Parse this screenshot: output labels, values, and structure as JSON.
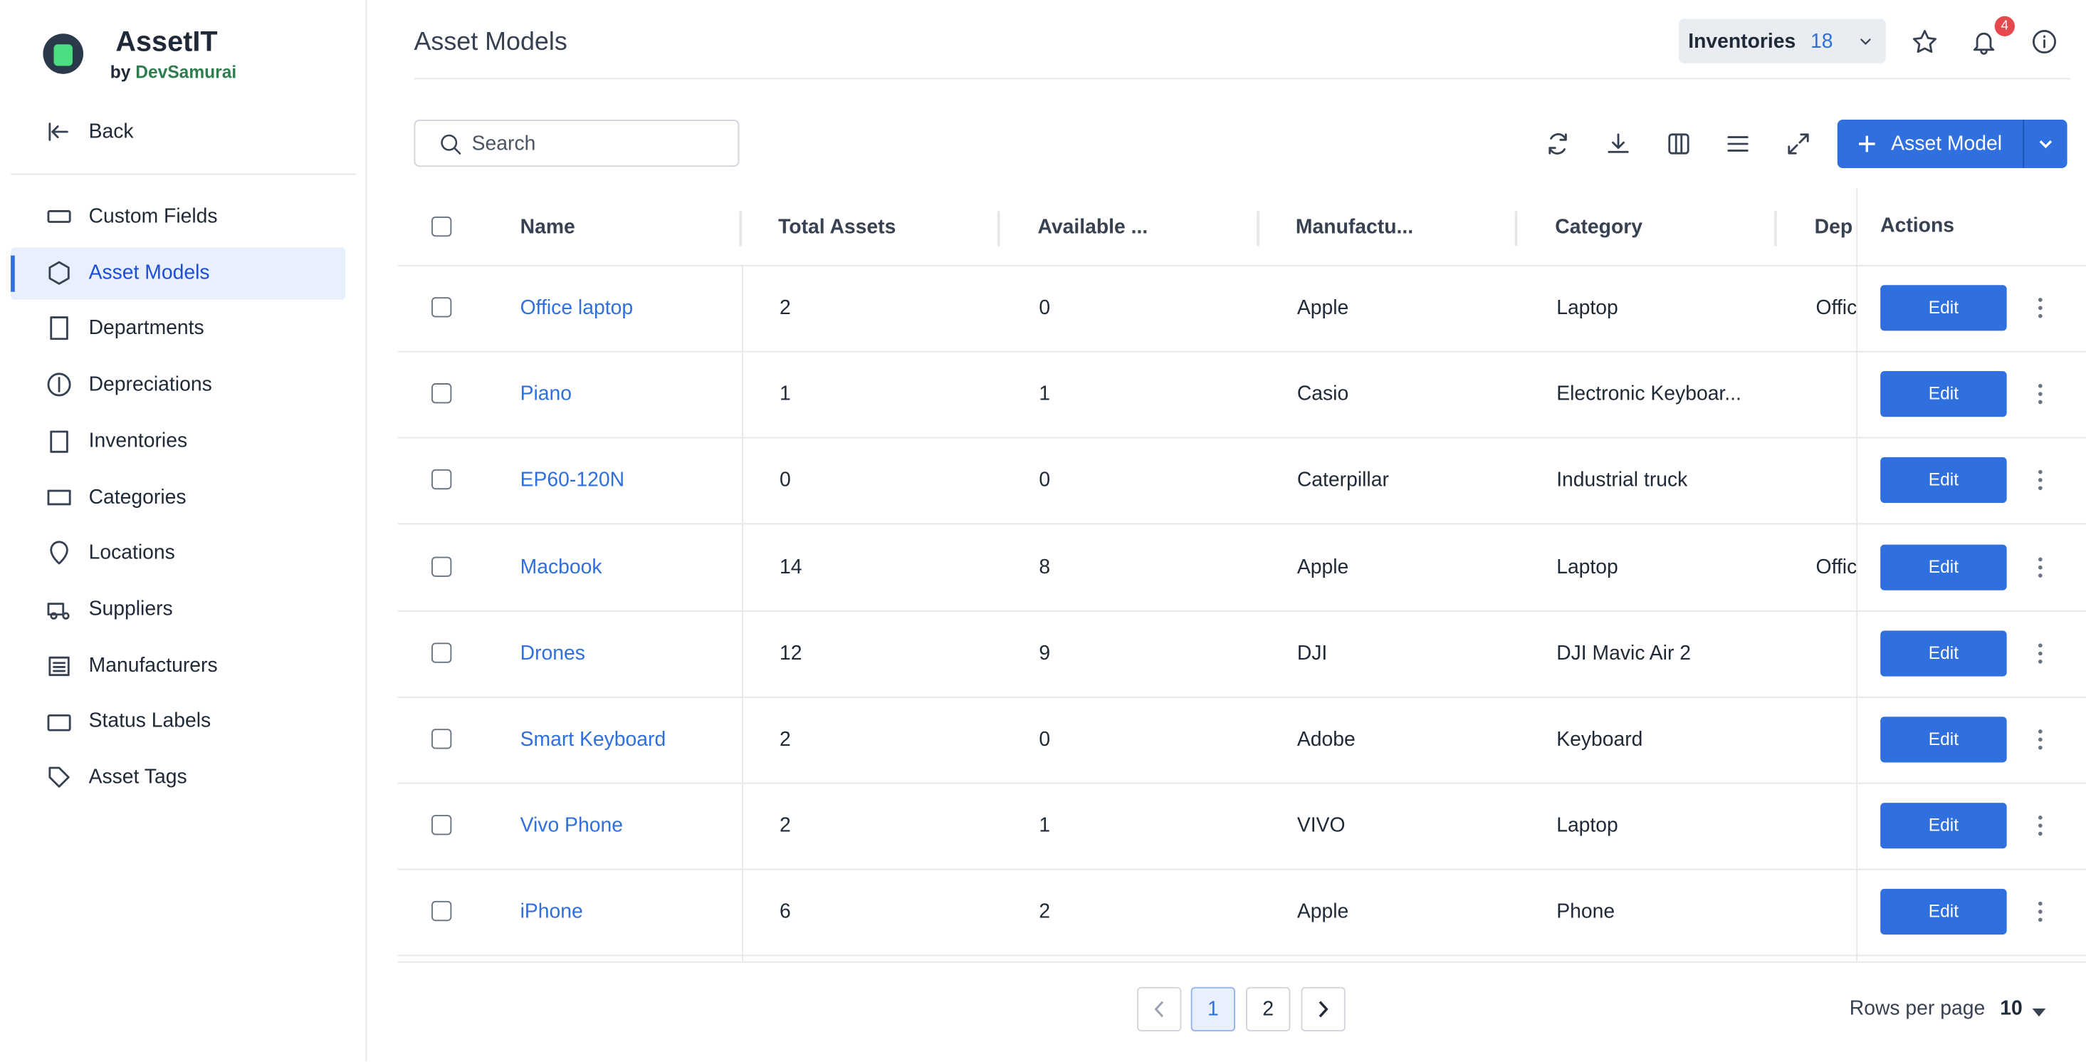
{
  "app": {
    "name": "AssetIT",
    "by": "by",
    "company": "DevSamurai"
  },
  "nav": {
    "back": "Back",
    "active": 1,
    "items": [
      "Custom Fields",
      "Asset Models",
      "Departments",
      "Depreciations",
      "Inventories",
      "Categories",
      "Locations",
      "Suppliers",
      "Manufacturers",
      "Status Labels",
      "Asset Tags"
    ]
  },
  "header": {
    "title": "Asset Models",
    "inventories": "Inventories",
    "inventory_count": "18",
    "notifications": "4"
  },
  "toolbar": {
    "search": "Search",
    "add_button": "Asset Model"
  },
  "table": {
    "columns": [
      "Name",
      "Total Assets",
      "Available ...",
      "Manufactu...",
      "Category",
      "Dep",
      "Actions"
    ],
    "action": "Edit",
    "rows": [
      [
        "Office laptop",
        "2",
        "0",
        "Apple",
        "Laptop",
        "Offic"
      ],
      [
        "Piano",
        "1",
        "1",
        "Casio",
        "Electronic Keyboar...",
        ""
      ],
      [
        "EP60-120N",
        "0",
        "0",
        "Caterpillar",
        "Industrial truck",
        ""
      ],
      [
        "Macbook",
        "14",
        "8",
        "Apple",
        "Laptop",
        "Offic"
      ],
      [
        "Drones",
        "12",
        "9",
        "DJI",
        "DJI Mavic Air 2",
        ""
      ],
      [
        "Smart Keyboard",
        "2",
        "0",
        "Adobe",
        "Keyboard",
        ""
      ],
      [
        "Vivo Phone",
        "2",
        "1",
        "VIVO",
        "Laptop",
        ""
      ],
      [
        "iPhone",
        "6",
        "2",
        "Apple",
        "Phone",
        ""
      ]
    ]
  },
  "pagination": {
    "pages": [
      "1",
      "2"
    ],
    "current": 0,
    "rows_label": "Rows per page",
    "rows_value": "10"
  }
}
